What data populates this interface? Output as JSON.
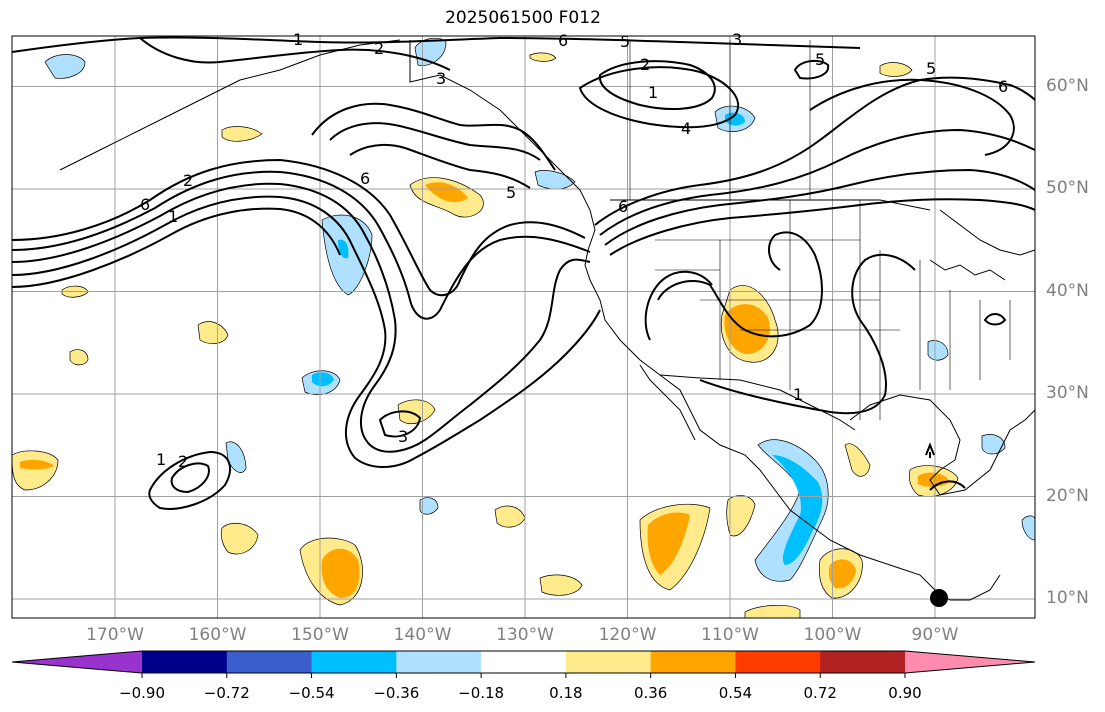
{
  "title": "2025061500 F012",
  "lat_labels": [
    "60°N",
    "50°N",
    "40°N",
    "30°N",
    "20°N",
    "10°N"
  ],
  "lon_labels": [
    "170°W",
    "160°W",
    "150°W",
    "140°W",
    "130°W",
    "120°W",
    "110°W",
    "100°W",
    "90°W"
  ],
  "map_extent": {
    "lon": [
      -180,
      -80
    ],
    "lat": [
      8,
      66
    ]
  },
  "colorbar": {
    "ticks": [
      "−0.90",
      "−0.72",
      "−0.54",
      "−0.36",
      "−0.18",
      "0.18",
      "0.36",
      "0.54",
      "0.72",
      "0.90"
    ],
    "colors": [
      "#9a32cd",
      "#00008b",
      "#3a5fcd",
      "#00bfff",
      "#afe1ff",
      "#ffffff",
      "#ffea8c",
      "#ffa500",
      "#ff3c00",
      "#b22222",
      "#ff8caf"
    ]
  },
  "contour_labels": [
    "1",
    "2",
    "3",
    "4",
    "5",
    "6"
  ],
  "marker": {
    "type": "filled-circle",
    "color": "#000000"
  },
  "styles": {
    "coast": "#000000",
    "grid": "#a0a0a0",
    "contour": "#000000"
  }
}
